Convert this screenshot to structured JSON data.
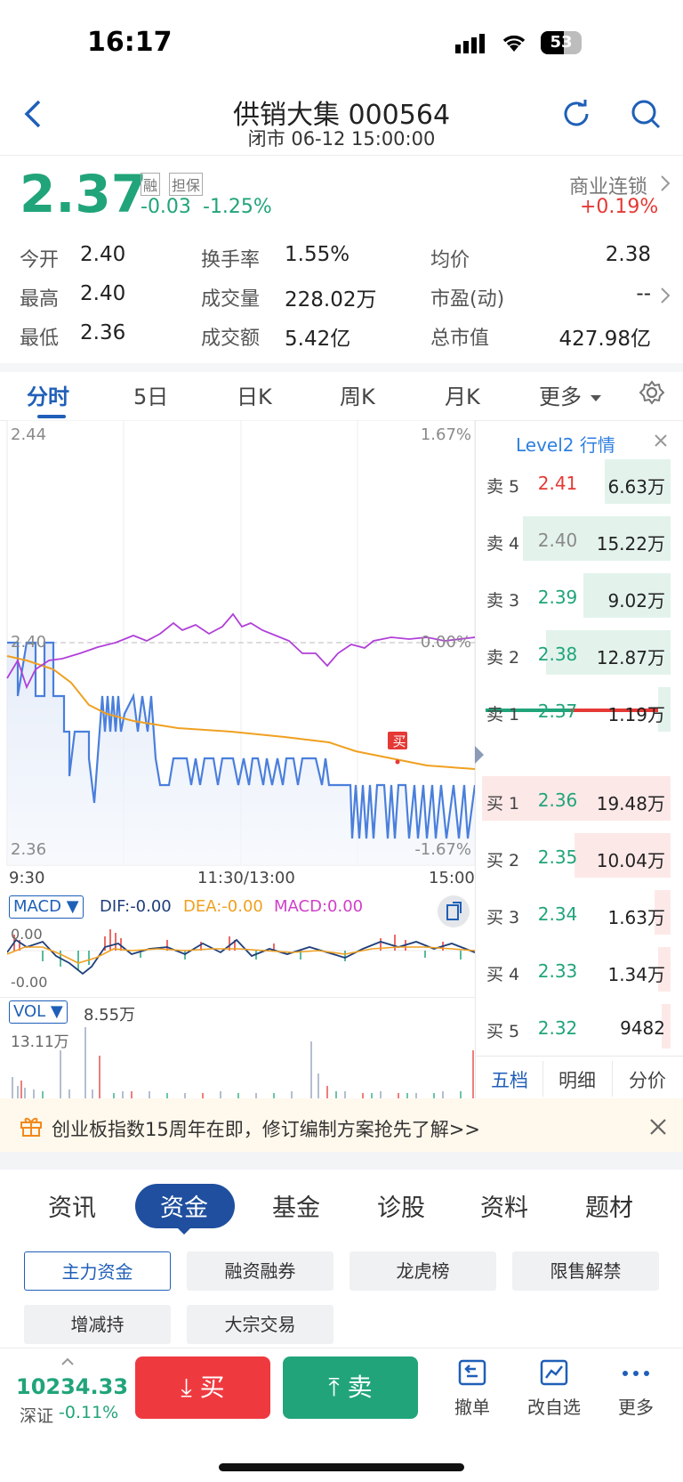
{
  "status_bar": {
    "time": "16:17",
    "battery": "53"
  },
  "header": {
    "title": "供销大集 000564",
    "subtitle": "闭市 06-12 15:00:00"
  },
  "quote": {
    "price": "2.37",
    "change": "-0.03",
    "change_pct": "-1.25%",
    "badge_margin": "融",
    "badge_collateral": "担保",
    "sector_name": "商业连锁",
    "sector_change": "+0.19%"
  },
  "stats": {
    "open_label": "今开",
    "open": "2.40",
    "high_label": "最高",
    "high": "2.40",
    "low_label": "最低",
    "low": "2.36",
    "turnover_label": "换手率",
    "turnover": "1.55%",
    "volume_label": "成交量",
    "volume": "228.02万",
    "amount_label": "成交额",
    "amount": "5.42亿",
    "avg_label": "均价",
    "avg": "2.38",
    "pe_label": "市盈(动)",
    "pe": "--",
    "mktcap_label": "总市值",
    "mktcap": "427.98亿"
  },
  "tabs": [
    "分时",
    "5日",
    "日K",
    "周K",
    "月K",
    "更多"
  ],
  "chart": {
    "y_top": "2.44",
    "y_mid": "2.40",
    "y_bottom": "2.36",
    "pct_top": "1.67%",
    "pct_mid": "0.00%",
    "pct_bottom": "-1.67%",
    "x_start": "9:30",
    "x_mid": "11:30/13:00",
    "x_end": "15:00",
    "buy_marker": "买",
    "macd_selector": "MACD",
    "dif": "DIF:-0.00",
    "dea": "DEA:-0.00",
    "macd": "MACD:0.00",
    "macd_top": "0.00",
    "macd_bottom": "-0.00",
    "vol_selector": "VOL",
    "vol_value": "8.55万",
    "vol_max": "13.11万"
  },
  "orderbook": {
    "title": "Level2 行情",
    "asks": [
      {
        "label": "卖 5",
        "price": "2.41",
        "vol": "6.63万"
      },
      {
        "label": "卖 4",
        "price": "2.40",
        "vol": "15.22万"
      },
      {
        "label": "卖 3",
        "price": "2.39",
        "vol": "9.02万"
      },
      {
        "label": "卖 2",
        "price": "2.38",
        "vol": "12.87万"
      },
      {
        "label": "卖 1",
        "price": "2.37",
        "vol": "1.19万"
      }
    ],
    "bids": [
      {
        "label": "买 1",
        "price": "2.36",
        "vol": "19.48万"
      },
      {
        "label": "买 2",
        "price": "2.35",
        "vol": "10.04万"
      },
      {
        "label": "买 3",
        "price": "2.34",
        "vol": "1.63万"
      },
      {
        "label": "买 4",
        "price": "2.33",
        "vol": "1.34万"
      },
      {
        "label": "买 5",
        "price": "2.32",
        "vol": "9482"
      }
    ],
    "tabs": [
      "五档",
      "明细",
      "分价"
    ]
  },
  "banner": {
    "text": "创业板指数15周年在即，修订编制方案抢先了解>>"
  },
  "info_tabs": [
    "资讯",
    "资金",
    "基金",
    "诊股",
    "资料",
    "题材"
  ],
  "chips": [
    "主力资金",
    "融资融券",
    "龙虎榜",
    "限售解禁",
    "增减持",
    "大宗交易"
  ],
  "bottom": {
    "index_value": "10234.33",
    "index_name": "深证",
    "index_change": "-0.11%",
    "buy": "买",
    "sell": "卖",
    "cancel": "撤单",
    "watch": "改自选",
    "more": "更多"
  },
  "colors": {
    "up": "#e53935",
    "down": "#21a47a",
    "accent": "#1f5fb8",
    "price_line": "#4a7fdc",
    "avg_line": "#f0a020"
  }
}
